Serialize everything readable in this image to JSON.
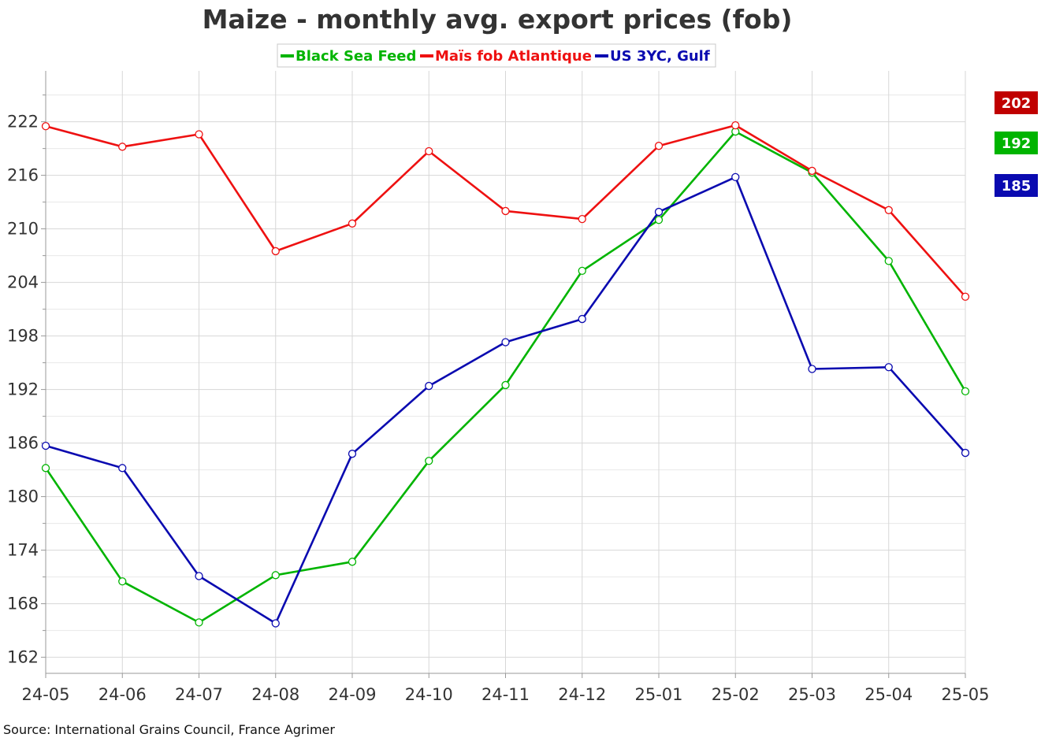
{
  "chart_data": {
    "type": "line",
    "title": "Maize - monthly avg. export prices (fob)",
    "source": "Source: International Grains Council, France Agrimer",
    "x": [
      "24-05",
      "24-06",
      "24-07",
      "24-08",
      "24-09",
      "24-10",
      "24-11",
      "24-12",
      "25-01",
      "25-02",
      "25-03",
      "25-04",
      "25-05"
    ],
    "yticks": [
      162,
      168,
      174,
      180,
      186,
      192,
      198,
      204,
      210,
      216,
      222
    ],
    "ylim": [
      160.2,
      227.7
    ],
    "grid": true,
    "legend_position": "top-center",
    "series": [
      {
        "name": "Black Sea Feed",
        "color": "#00b400",
        "values": [
          183.2,
          170.5,
          165.9,
          171.2,
          172.7,
          184.0,
          192.5,
          205.3,
          211.0,
          220.9,
          216.3,
          206.4,
          191.8
        ]
      },
      {
        "name": "Maïs fob Atlantique",
        "color": "#ee1111",
        "values": [
          221.5,
          219.2,
          220.6,
          207.5,
          210.6,
          218.7,
          212.0,
          211.1,
          219.3,
          221.6,
          216.5,
          212.1,
          202.4
        ]
      },
      {
        "name": "US 3YC, Gulf",
        "color": "#0a0ab0",
        "values": [
          185.7,
          183.2,
          171.1,
          165.8,
          184.8,
          192.4,
          197.3,
          199.9,
          211.9,
          215.8,
          194.3,
          194.5,
          184.9
        ]
      }
    ],
    "last_value_badges": [
      {
        "label": "202",
        "color": "#c00000"
      },
      {
        "label": "192",
        "color": "#00b400"
      },
      {
        "label": "185",
        "color": "#0a0ab0"
      }
    ]
  }
}
